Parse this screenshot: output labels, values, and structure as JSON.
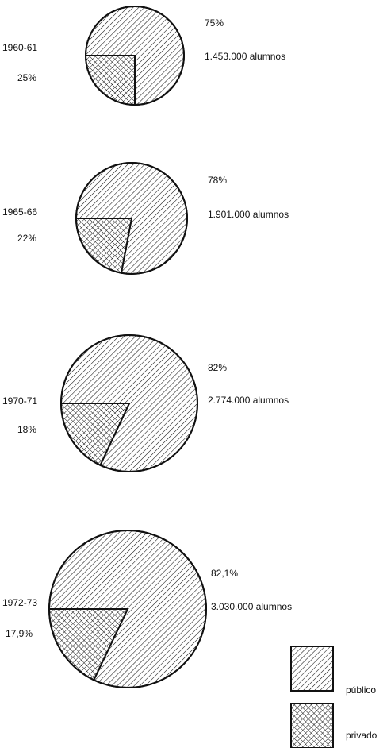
{
  "chart_data": [
    {
      "type": "pie",
      "year": "1960-61",
      "slices": [
        {
          "category": "público",
          "value": 75,
          "label": "75%"
        },
        {
          "category": "privado",
          "value": 25,
          "label": "25%"
        }
      ],
      "total_label": "1.453.000 alumnos"
    },
    {
      "type": "pie",
      "year": "1965-66",
      "slices": [
        {
          "category": "público",
          "value": 78,
          "label": "78%"
        },
        {
          "category": "privado",
          "value": 22,
          "label": "22%"
        }
      ],
      "total_label": "1.901.000 alumnos"
    },
    {
      "type": "pie",
      "year": "1970-71",
      "slices": [
        {
          "category": "público",
          "value": 82,
          "label": "82%"
        },
        {
          "category": "privado",
          "value": 18,
          "label": "18%"
        }
      ],
      "total_label": "2.774.000 alumnos"
    },
    {
      "type": "pie",
      "year": "1972-73",
      "slices": [
        {
          "category": "público",
          "value": 82.1,
          "label": "82,1%"
        },
        {
          "category": "privado",
          "value": 17.9,
          "label": "17,9%"
        }
      ],
      "total_label": "3.030.000 alumnos"
    }
  ],
  "legend": {
    "placement": "bottom-right",
    "items": [
      {
        "label": "público",
        "pattern": "single-hatch"
      },
      {
        "label": "privado",
        "pattern": "cross-hatch"
      }
    ]
  },
  "colors": {
    "ink": "#111111",
    "background": "#ffffff"
  }
}
